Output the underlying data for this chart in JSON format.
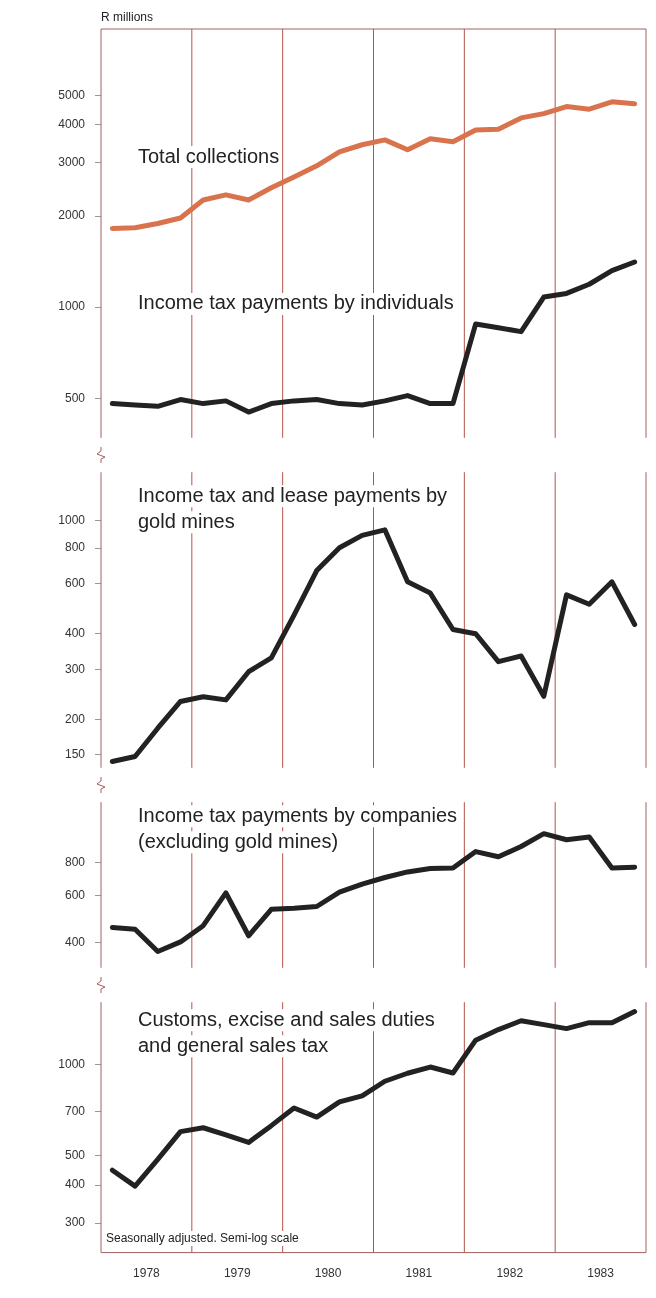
{
  "chart_data": [
    {
      "type": "line",
      "ylabel": "R millions",
      "log": true,
      "tick_labels": "y",
      "xlim": [
        1978,
        1984
      ],
      "ylim": [
        370,
        8300
      ],
      "yticks": [
        500,
        1000,
        2000,
        3000,
        4000,
        5000
      ],
      "x": [
        1978.125,
        1978.375,
        1978.625,
        1978.875,
        1979.125,
        1979.375,
        1979.625,
        1979.875,
        1980.125,
        1980.375,
        1980.625,
        1980.875,
        1981.125,
        1981.375,
        1981.625,
        1981.875,
        1982.125,
        1982.375,
        1982.625,
        1982.875,
        1983.125,
        1983.375,
        1983.625,
        1983.875
      ],
      "ref_lines": [
        {
          "axis": "x",
          "value": 1979,
          "color": "#b5534a"
        },
        {
          "axis": "x",
          "value": 1980,
          "color": "#b5534a"
        },
        {
          "axis": "x",
          "value": 1981,
          "color": "#b5534a"
        },
        {
          "axis": "x",
          "value": 1982,
          "color": "#b5534a"
        },
        {
          "axis": "x",
          "value": 1983,
          "color": "#b5534a"
        }
      ],
      "series": [
        {
          "name": "Total collections",
          "color": "#d9734e",
          "values": [
            1820,
            1830,
            1890,
            1970,
            2260,
            2350,
            2260,
            2480,
            2690,
            2930,
            3260,
            3440,
            3570,
            3310,
            3600,
            3520,
            3850,
            3870,
            4220,
            4360,
            4600,
            4510,
            4770,
            4700
          ]
        },
        {
          "name": "Income tax payments by individuals",
          "color": "#222222",
          "values": [
            480,
            475,
            470,
            495,
            480,
            490,
            450,
            480,
            490,
            495,
            480,
            475,
            490,
            510,
            480,
            480,
            880,
            855,
            830,
            1080,
            1110,
            1190,
            1320,
            1410
          ]
        }
      ]
    },
    {
      "type": "line",
      "log": true,
      "tick_labels": "y",
      "xlim": [
        1978,
        1984
      ],
      "ylim": [
        135,
        1480
      ],
      "yticks": [
        150,
        200,
        300,
        400,
        600,
        800,
        1000
      ],
      "x": [
        1978.125,
        1978.375,
        1978.625,
        1978.875,
        1979.125,
        1979.375,
        1979.625,
        1979.875,
        1980.125,
        1980.375,
        1980.625,
        1980.875,
        1981.125,
        1981.375,
        1981.625,
        1981.875,
        1982.125,
        1982.375,
        1982.625,
        1982.875,
        1983.125,
        1983.375,
        1983.625,
        1983.875
      ],
      "ref_lines": [
        {
          "axis": "x",
          "value": 1979,
          "color": "#b5534a"
        },
        {
          "axis": "x",
          "value": 1980,
          "color": "#b5534a"
        },
        {
          "axis": "x",
          "value": 1981,
          "color": "#b5534a"
        },
        {
          "axis": "x",
          "value": 1982,
          "color": "#b5534a"
        },
        {
          "axis": "x",
          "value": 1983,
          "color": "#b5534a"
        }
      ],
      "series": [
        {
          "name": "Income tax and lease payments by gold mines",
          "color": "#222222",
          "values": [
            142,
            148,
            186,
            231,
            240,
            234,
            294,
            329,
            465,
            667,
            803,
            887,
            928,
            609,
            556,
            414,
            400,
            319,
            334,
            241,
            548,
            508,
            609,
            431
          ]
        }
      ]
    },
    {
      "type": "line",
      "log": true,
      "tick_labels": "y",
      "xlim": [
        1978,
        1984
      ],
      "ylim": [
        320,
        1355
      ],
      "yticks": [
        400,
        600,
        800
      ],
      "x": [
        1978.125,
        1978.375,
        1978.625,
        1978.875,
        1979.125,
        1979.375,
        1979.625,
        1979.875,
        1980.125,
        1980.375,
        1980.625,
        1980.875,
        1981.125,
        1981.375,
        1981.625,
        1981.875,
        1982.125,
        1982.375,
        1982.625,
        1982.875,
        1983.125,
        1983.375,
        1983.625,
        1983.875
      ],
      "ref_lines": [
        {
          "axis": "x",
          "value": 1979,
          "color": "#b5534a"
        },
        {
          "axis": "x",
          "value": 1980,
          "color": "#b5534a"
        },
        {
          "axis": "x",
          "value": 1981,
          "color": "#b5534a"
        },
        {
          "axis": "x",
          "value": 1982,
          "color": "#b5534a"
        },
        {
          "axis": "x",
          "value": 1983,
          "color": "#b5534a"
        }
      ],
      "series": [
        {
          "name": "Income tax payments by companies (excluding gold mines)",
          "color": "#222222",
          "values": [
            455,
            448,
            369,
            401,
            462,
            615,
            423,
            533,
            538,
            546,
            619,
            664,
            703,
            738,
            760,
            764,
            881,
            842,
            921,
            1030,
            977,
            1000,
            764,
            769
          ]
        }
      ]
    },
    {
      "type": "line",
      "log": true,
      "xlim": [
        1978,
        1984
      ],
      "ylim": [
        240,
        1600
      ],
      "yticks": [
        300,
        400,
        500,
        700,
        1000
      ],
      "xticks": [
        {
          "value": 1978.5,
          "label": "1978"
        },
        {
          "value": 1979.5,
          "label": "1979"
        },
        {
          "value": 1980.5,
          "label": "1980"
        },
        {
          "value": 1981.5,
          "label": "1981"
        },
        {
          "value": 1982.5,
          "label": "1982"
        },
        {
          "value": 1983.5,
          "label": "1983"
        }
      ],
      "x": [
        1978.125,
        1978.375,
        1978.625,
        1978.875,
        1979.125,
        1979.375,
        1979.625,
        1979.875,
        1980.125,
        1980.375,
        1980.625,
        1980.875,
        1981.125,
        1981.375,
        1981.625,
        1981.875,
        1982.125,
        1982.375,
        1982.625,
        1982.875,
        1983.125,
        1983.375,
        1983.625,
        1983.875
      ],
      "ref_lines": [
        {
          "axis": "x",
          "value": 1979,
          "color": "#b5534a"
        },
        {
          "axis": "x",
          "value": 1980,
          "color": "#b5534a"
        },
        {
          "axis": "x",
          "value": 1981,
          "color": "#b5534a"
        },
        {
          "axis": "x",
          "value": 1982,
          "color": "#b5534a"
        },
        {
          "axis": "x",
          "value": 1983,
          "color": "#b5534a"
        }
      ],
      "annotations": [
        "Seasonally adjusted. Semi-log scale"
      ],
      "series": [
        {
          "name": "Customs, excise and sales duties and general sales tax",
          "color": "#222222",
          "values": [
            448,
            397,
            486,
            600,
            618,
            586,
            553,
            628,
            718,
            670,
            752,
            787,
            879,
            934,
            979,
            936,
            1200,
            1300,
            1390,
            1350,
            1310,
            1370,
            1370,
            1490
          ]
        }
      ]
    }
  ]
}
